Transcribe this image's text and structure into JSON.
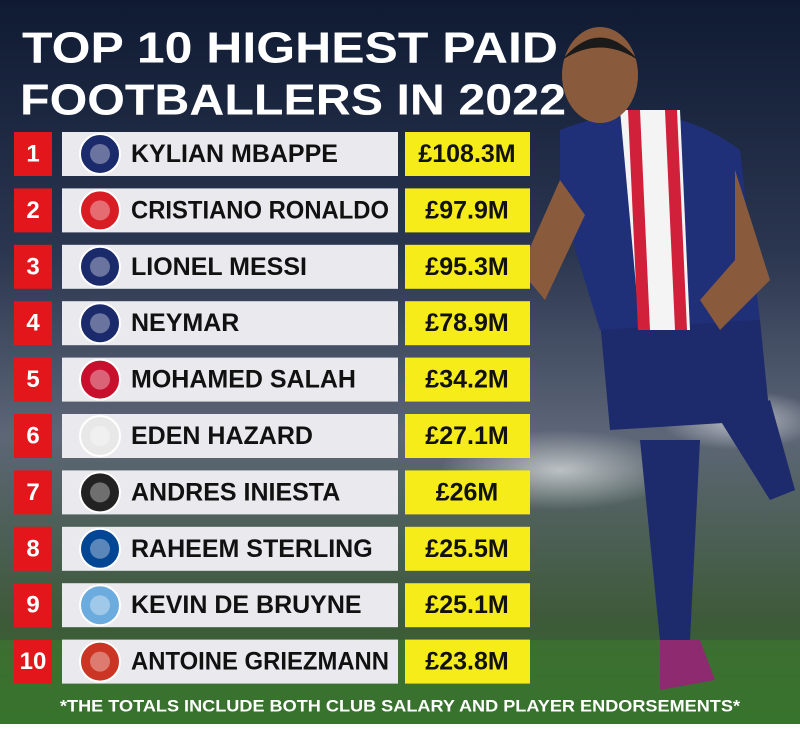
{
  "header": {
    "title_lines": [
      "TOP 10 HIGHEST PAID",
      "FOOTBALLERS IN 2022"
    ]
  },
  "rows": [
    {
      "rank": "1",
      "name": "KYLIAN MBAPPE",
      "amount": "£108.3M"
    },
    {
      "rank": "2",
      "name": "CRISTIANO RONALDO",
      "amount": "£97.9M"
    },
    {
      "rank": "3",
      "name": "LIONEL MESSI",
      "amount": "£95.3M"
    },
    {
      "rank": "4",
      "name": "NEYMAR",
      "amount": "£78.9M"
    },
    {
      "rank": "5",
      "name": "MOHAMED SALAH",
      "amount": "£34.2M"
    },
    {
      "rank": "6",
      "name": "EDEN HAZARD",
      "amount": "£27.1M"
    },
    {
      "rank": "7",
      "name": "ANDRES INIESTA",
      "amount": "£26M"
    },
    {
      "rank": "8",
      "name": "RAHEEM STERLING",
      "amount": "£25.5M"
    },
    {
      "rank": "9",
      "name": "KEVIN DE BRUYNE",
      "amount": "£25.1M"
    },
    {
      "rank": "10",
      "name": "ANTOINE GRIEZMANN",
      "amount": "£23.8M"
    }
  ],
  "footnote": "*THE TOTALS INCLUDE BOTH CLUB SALARY AND PLAYER ENDORSEMENTS*"
}
